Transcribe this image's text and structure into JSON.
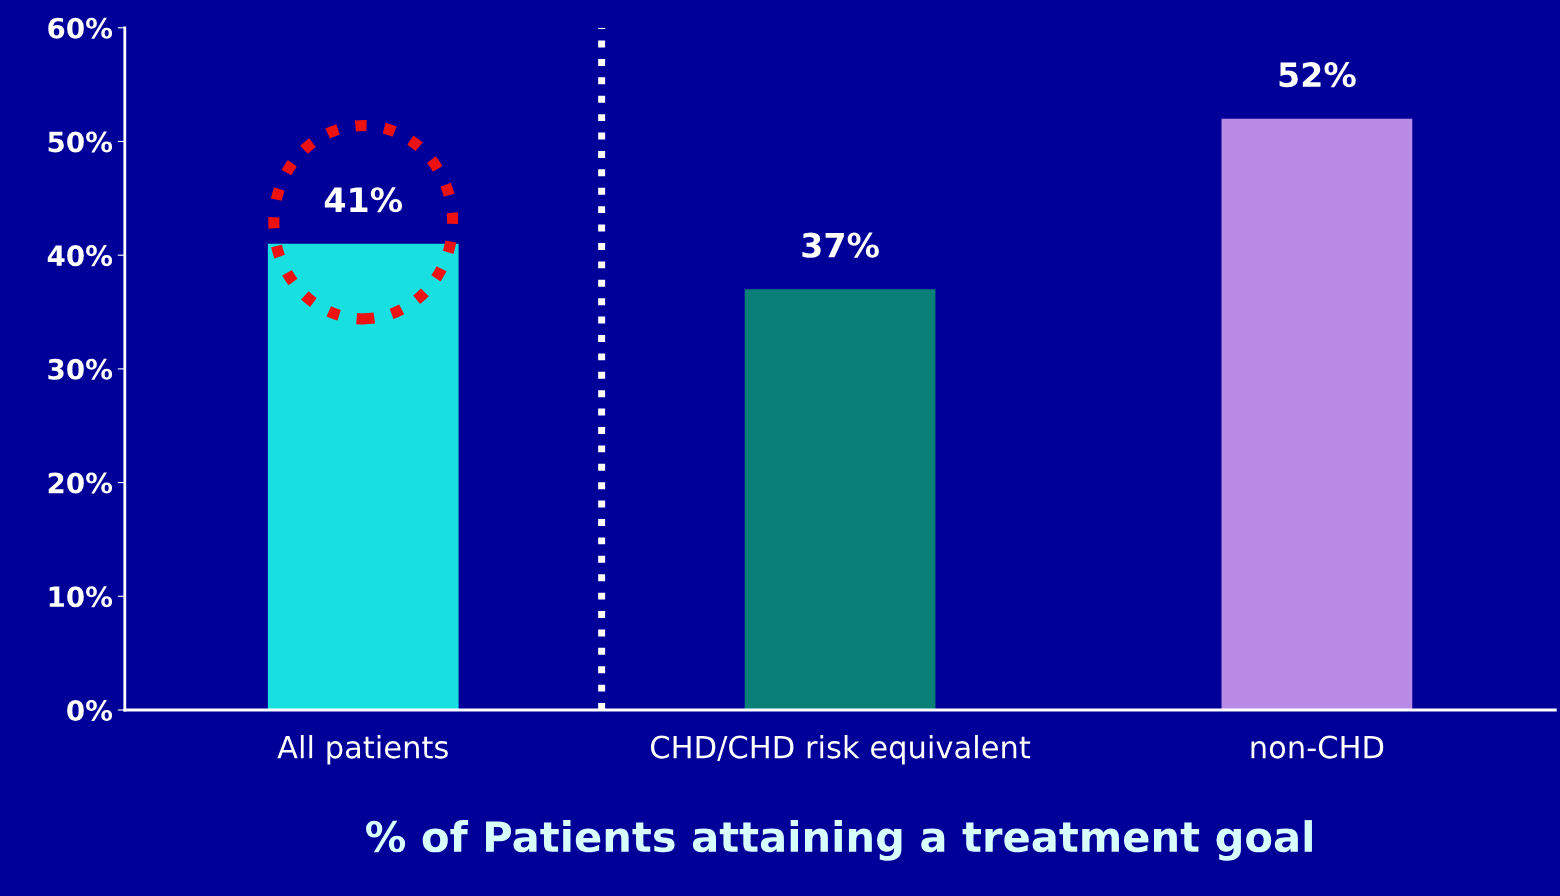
{
  "chart_data": {
    "type": "bar",
    "xlabel": "% of Patients attaining a treatment goal",
    "categories": [
      "All patients",
      "CHD/CHD risk equivalent",
      "non-CHD"
    ],
    "values": [
      41,
      37,
      52
    ],
    "colors": [
      "#19e0e0",
      "#0a7f78",
      "#b98ae6"
    ],
    "value_labels": [
      "41%",
      "37%",
      "52%"
    ],
    "ylim": [
      0,
      60
    ],
    "yticks": [
      {
        "value": 0,
        "label": "0%"
      },
      {
        "value": 10,
        "label": "10%"
      },
      {
        "value": 20,
        "label": "20%"
      },
      {
        "value": 30,
        "label": "30%"
      },
      {
        "value": 40,
        "label": "40%"
      },
      {
        "value": 50,
        "label": "50%"
      },
      {
        "value": 60,
        "label": "60%"
      }
    ],
    "grid": false
  }
}
